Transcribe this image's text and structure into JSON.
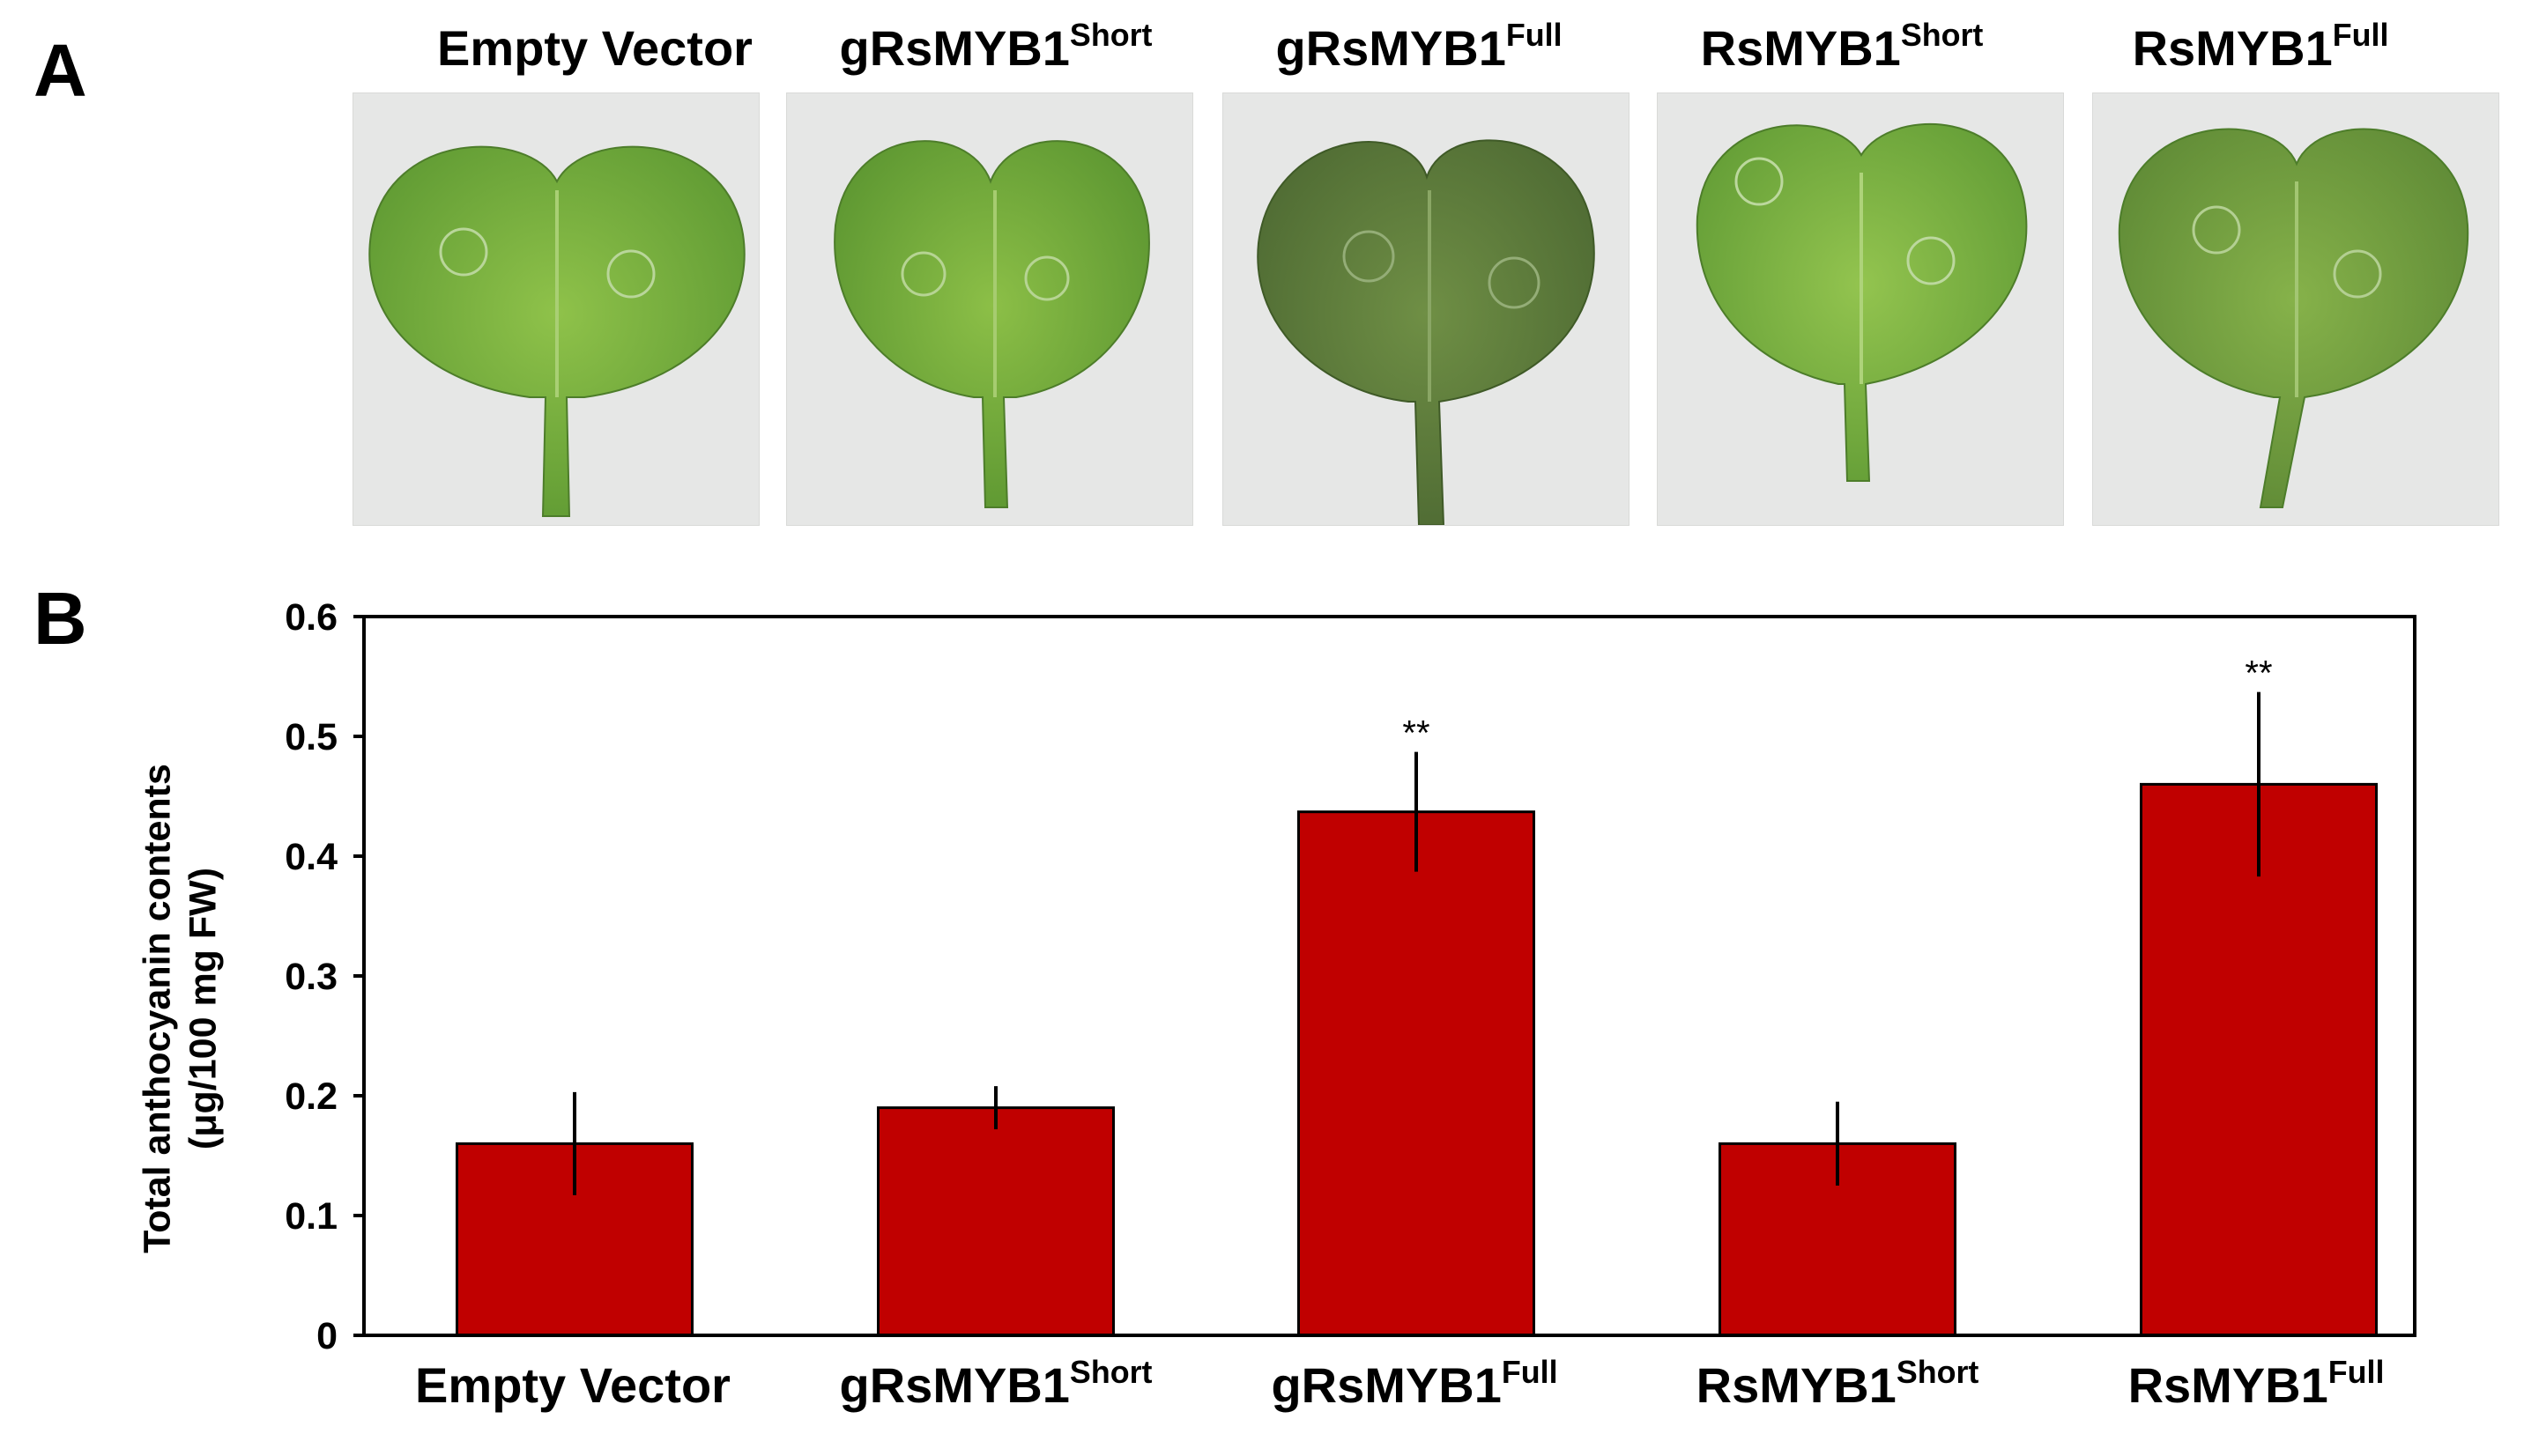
{
  "panels": {
    "a": "A",
    "b": "B"
  },
  "photo_labels": [
    {
      "main": "Empty Vector",
      "sup": ""
    },
    {
      "main": "gRsMYB1",
      "sup": "Short"
    },
    {
      "main": "gRsMYB1",
      "sup": "Full"
    },
    {
      "main": "RsMYB1",
      "sup": "Short"
    },
    {
      "main": "RsMYB1",
      "sup": "Full"
    }
  ],
  "colors": {
    "bar": "#c00000",
    "leaf_light": "#7fb43a",
    "leaf_dark": "#4f7a2c",
    "background": "#ffffff"
  },
  "chart_data": {
    "type": "bar",
    "categories": [
      {
        "main": "Empty Vector",
        "sup": ""
      },
      {
        "main": "gRsMYB1",
        "sup": "Short"
      },
      {
        "main": "gRsMYB1",
        "sup": "Full"
      },
      {
        "main": "RsMYB1",
        "sup": "Short"
      },
      {
        "main": "RsMYB1",
        "sup": "Full"
      }
    ],
    "values": [
      0.16,
      0.19,
      0.437,
      0.16,
      0.46
    ],
    "errors": [
      0.043,
      0.018,
      0.05,
      0.035,
      0.077
    ],
    "significance": [
      "",
      "",
      "**",
      "",
      "**"
    ],
    "ylabel_line1": "Total anthocyanin contents",
    "ylabel_line2": "(μg/100 mg FW)",
    "ylim": [
      0,
      0.6
    ],
    "yticks": [
      "0",
      "0.1",
      "0.2",
      "0.3",
      "0.4",
      "0.5",
      "0.6"
    ],
    "grid": false,
    "legend": "none"
  }
}
